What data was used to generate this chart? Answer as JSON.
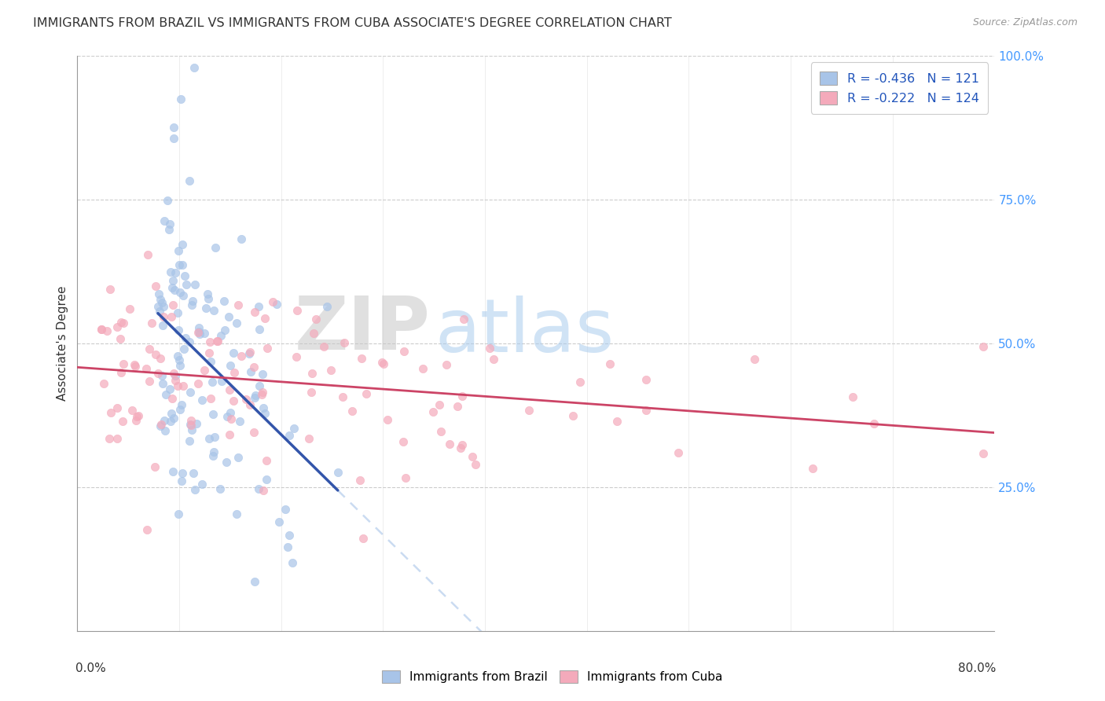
{
  "title": "IMMIGRANTS FROM BRAZIL VS IMMIGRANTS FROM CUBA ASSOCIATE'S DEGREE CORRELATION CHART",
  "source": "Source: ZipAtlas.com",
  "ylabel": "Associate's Degree",
  "xmin": 0.0,
  "xmax": 0.8,
  "ymin": 0.0,
  "ymax": 1.0,
  "brazil_R": -0.436,
  "brazil_N": 121,
  "cuba_R": -0.222,
  "cuba_N": 124,
  "brazil_color": "#A8C4E8",
  "brazil_line_color": "#3355AA",
  "cuba_color": "#F4AABB",
  "cuba_line_color": "#CC4466",
  "watermark_zip_color": "#CCCCCC",
  "watermark_atlas_color": "#AACCFF",
  "background_color": "#FFFFFF",
  "grid_color": "#CCCCCC",
  "right_axis_color": "#4499FF",
  "title_fontsize": 11.5,
  "source_fontsize": 9,
  "legend_R_color": "#2255BB",
  "legend_N_color": "#2255BB"
}
